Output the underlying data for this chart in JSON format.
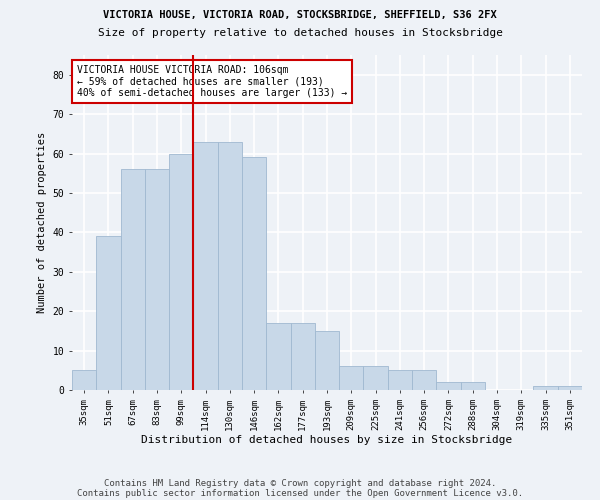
{
  "title1": "VICTORIA HOUSE, VICTORIA ROAD, STOCKSBRIDGE, SHEFFIELD, S36 2FX",
  "title2": "Size of property relative to detached houses in Stocksbridge",
  "xlabel": "Distribution of detached houses by size in Stocksbridge",
  "ylabel": "Number of detached properties",
  "categories": [
    "35sqm",
    "51sqm",
    "67sqm",
    "83sqm",
    "99sqm",
    "114sqm",
    "130sqm",
    "146sqm",
    "162sqm",
    "177sqm",
    "193sqm",
    "209sqm",
    "225sqm",
    "241sqm",
    "256sqm",
    "272sqm",
    "288sqm",
    "304sqm",
    "319sqm",
    "335sqm",
    "351sqm"
  ],
  "values": [
    5,
    39,
    56,
    56,
    60,
    63,
    63,
    59,
    17,
    17,
    15,
    6,
    6,
    5,
    5,
    2,
    2,
    0,
    0,
    1,
    1
  ],
  "bar_color": "#c8d8e8",
  "bar_edge_color": "#a0b8d0",
  "vline_color": "#cc0000",
  "annotation_text": "VICTORIA HOUSE VICTORIA ROAD: 106sqm\n← 59% of detached houses are smaller (193)\n40% of semi-detached houses are larger (133) →",
  "annotation_box_color": "#ffffff",
  "annotation_box_edge": "#cc0000",
  "ylim": [
    0,
    85
  ],
  "yticks": [
    0,
    10,
    20,
    30,
    40,
    50,
    60,
    70,
    80
  ],
  "footer1": "Contains HM Land Registry data © Crown copyright and database right 2024.",
  "footer2": "Contains public sector information licensed under the Open Government Licence v3.0.",
  "background_color": "#eef2f7",
  "grid_color": "#ffffff",
  "title1_fontsize": 7.5,
  "title2_fontsize": 8,
  "axis_label_fontsize": 7.5,
  "tick_fontsize": 6.5,
  "annotation_fontsize": 7,
  "footer_fontsize": 6.5,
  "ylabel_fontsize": 7.5
}
